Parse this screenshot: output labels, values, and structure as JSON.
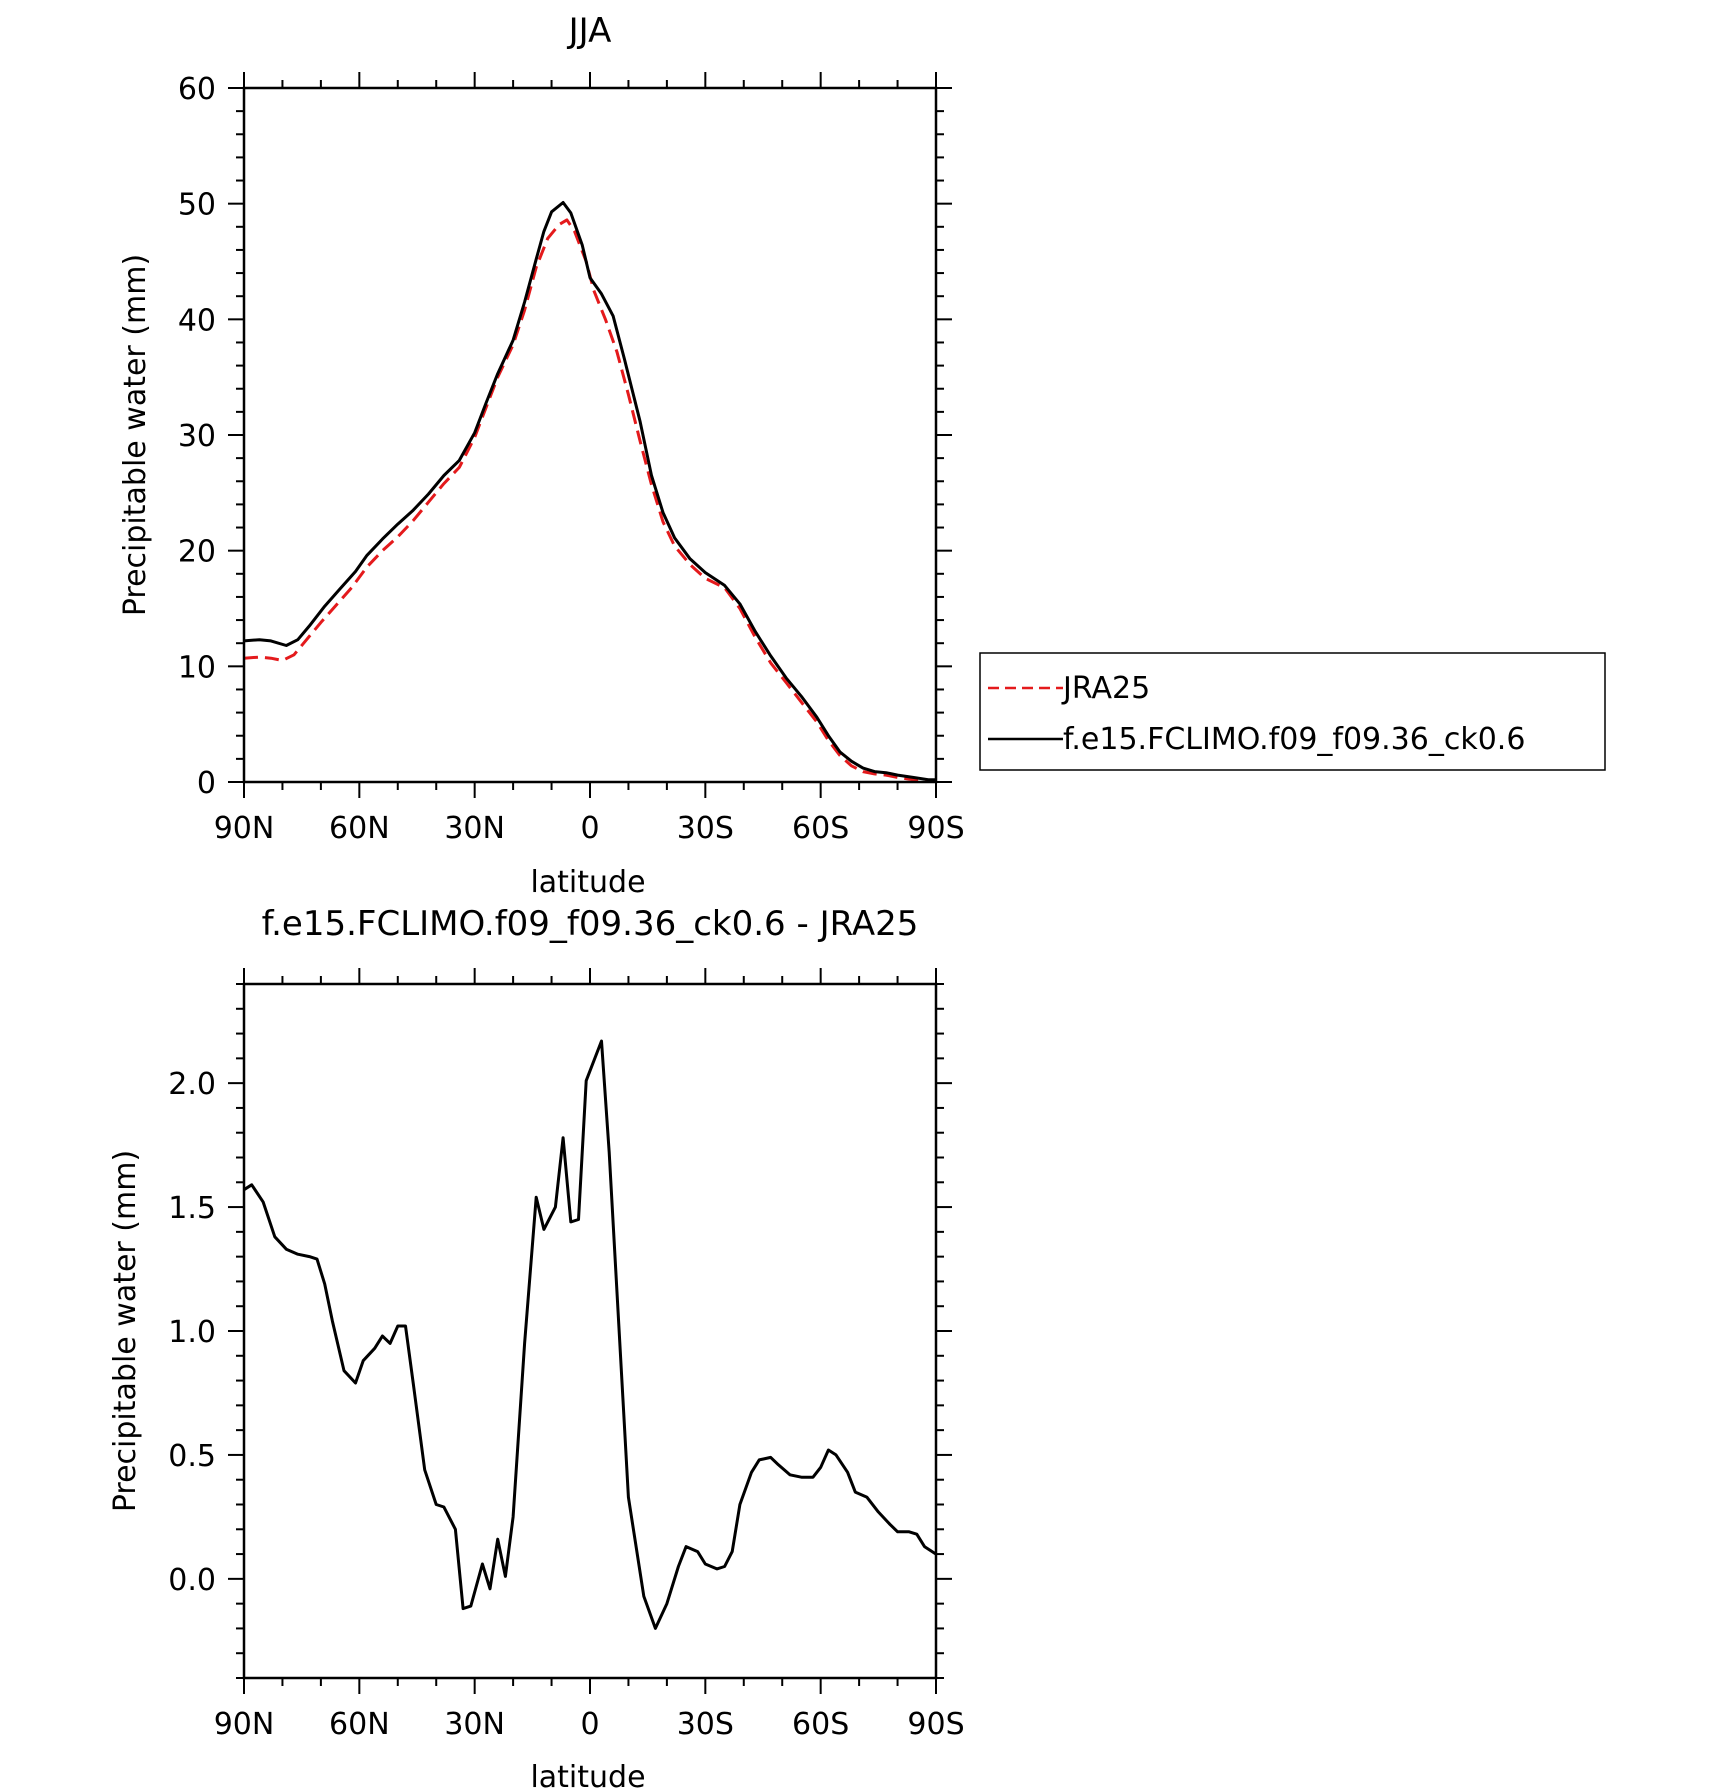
{
  "chart_data": [
    {
      "type": "line",
      "title": "JJA",
      "xlabel": "latitude",
      "ylabel": "Precipitable water (mm)",
      "xlim": [
        90,
        -90
      ],
      "ylim": [
        0,
        60
      ],
      "xticks": [
        {
          "value": 90,
          "label": "90N"
        },
        {
          "value": 60,
          "label": "60N"
        },
        {
          "value": 30,
          "label": "30N"
        },
        {
          "value": 0,
          "label": "0"
        },
        {
          "value": -30,
          "label": "30S"
        },
        {
          "value": -60,
          "label": "60S"
        },
        {
          "value": -90,
          "label": "90S"
        }
      ],
      "yticks": [
        {
          "value": 0,
          "label": "0"
        },
        {
          "value": 10,
          "label": "10"
        },
        {
          "value": 20,
          "label": "20"
        },
        {
          "value": 30,
          "label": "30"
        },
        {
          "value": 40,
          "label": "40"
        },
        {
          "value": 50,
          "label": "50"
        },
        {
          "value": 60,
          "label": "60"
        }
      ],
      "legend_position": "right",
      "series": [
        {
          "name": "JRA25",
          "color": "#e41a1c",
          "dash": "dashed",
          "points": [
            [
              90,
              10.7
            ],
            [
              86,
              10.8
            ],
            [
              83,
              10.7
            ],
            [
              80,
              10.5
            ],
            [
              77,
              11.0
            ],
            [
              74,
              12.2
            ],
            [
              70,
              13.8
            ],
            [
              66,
              15.3
            ],
            [
              62,
              16.8
            ],
            [
              58,
              18.6
            ],
            [
              54,
              20.0
            ],
            [
              50,
              21.2
            ],
            [
              46,
              22.6
            ],
            [
              42,
              24.2
            ],
            [
              38,
              25.8
            ],
            [
              34,
              27.2
            ],
            [
              30,
              29.8
            ],
            [
              27,
              32.4
            ],
            [
              24,
              35.0
            ],
            [
              20,
              37.8
            ],
            [
              17,
              40.8
            ],
            [
              14,
              44.5
            ],
            [
              11,
              47.0
            ],
            [
              8,
              48.2
            ],
            [
              6,
              48.6
            ],
            [
              4,
              47.6
            ],
            [
              1,
              45.0
            ],
            [
              -1,
              42.5
            ],
            [
              -4,
              40.0
            ],
            [
              -7,
              37.2
            ],
            [
              -10,
              33.5
            ],
            [
              -13,
              29.5
            ],
            [
              -16,
              25.7
            ],
            [
              -19,
              22.5
            ],
            [
              -22,
              20.4
            ],
            [
              -26,
              18.8
            ],
            [
              -30,
              17.6
            ],
            [
              -35,
              16.8
            ],
            [
              -39,
              15.0
            ],
            [
              -43,
              12.5
            ],
            [
              -47,
              10.3
            ],
            [
              -51,
              8.6
            ],
            [
              -55,
              6.9
            ],
            [
              -59,
              5.2
            ],
            [
              -62,
              3.6
            ],
            [
              -65,
              2.3
            ],
            [
              -68,
              1.4
            ],
            [
              -71,
              0.9
            ],
            [
              -74,
              0.7
            ],
            [
              -77,
              0.6
            ],
            [
              -80,
              0.4
            ],
            [
              -84,
              0.2
            ],
            [
              -88,
              0.1
            ],
            [
              -90,
              0.1
            ]
          ]
        },
        {
          "name": "f.e15.FCLIMO.f09_f09.36_ck0.6",
          "color": "#000000",
          "dash": "solid",
          "points": [
            [
              90,
              12.2
            ],
            [
              86,
              12.3
            ],
            [
              83,
              12.2
            ],
            [
              79,
              11.8
            ],
            [
              76,
              12.3
            ],
            [
              73,
              13.5
            ],
            [
              69,
              15.2
            ],
            [
              65,
              16.7
            ],
            [
              61,
              18.2
            ],
            [
              58,
              19.6
            ],
            [
              54,
              21.0
            ],
            [
              50,
              22.3
            ],
            [
              46,
              23.5
            ],
            [
              42,
              24.9
            ],
            [
              38,
              26.5
            ],
            [
              34,
              27.8
            ],
            [
              30,
              30.2
            ],
            [
              27,
              32.8
            ],
            [
              24,
              35.3
            ],
            [
              20,
              38.2
            ],
            [
              17,
              41.5
            ],
            [
              14,
              45.2
            ],
            [
              12,
              47.6
            ],
            [
              10,
              49.3
            ],
            [
              7,
              50.1
            ],
            [
              5,
              49.2
            ],
            [
              2,
              46.4
            ],
            [
              0,
              43.6
            ],
            [
              -3,
              42.2
            ],
            [
              -6,
              40.3
            ],
            [
              -9,
              36.5
            ],
            [
              -13,
              31.2
            ],
            [
              -16,
              26.5
            ],
            [
              -19,
              23.3
            ],
            [
              -22,
              21.1
            ],
            [
              -26,
              19.3
            ],
            [
              -30,
              18.1
            ],
            [
              -35,
              17.0
            ],
            [
              -39,
              15.4
            ],
            [
              -43,
              13.0
            ],
            [
              -47,
              10.9
            ],
            [
              -51,
              9.0
            ],
            [
              -55,
              7.4
            ],
            [
              -59,
              5.6
            ],
            [
              -62,
              4.0
            ],
            [
              -65,
              2.6
            ],
            [
              -68,
              1.8
            ],
            [
              -71,
              1.2
            ],
            [
              -74,
              0.9
            ],
            [
              -77,
              0.8
            ],
            [
              -80,
              0.6
            ],
            [
              -84,
              0.4
            ],
            [
              -88,
              0.2
            ],
            [
              -90,
              0.2
            ]
          ]
        }
      ]
    },
    {
      "type": "line",
      "title": "f.e15.FCLIMO.f09_f09.36_ck0.6 - JRA25",
      "xlabel": "latitude",
      "ylabel": "Precipitable water (mm)",
      "xlim": [
        90,
        -90
      ],
      "ylim": [
        -0.4,
        2.4
      ],
      "xticks": [
        {
          "value": 90,
          "label": "90N"
        },
        {
          "value": 60,
          "label": "60N"
        },
        {
          "value": 30,
          "label": "30N"
        },
        {
          "value": 0,
          "label": "0"
        },
        {
          "value": -30,
          "label": "30S"
        },
        {
          "value": -60,
          "label": "60S"
        },
        {
          "value": -90,
          "label": "90S"
        }
      ],
      "yticks": [
        {
          "value": 0.0,
          "label": "0.0"
        },
        {
          "value": 0.5,
          "label": "0.5"
        },
        {
          "value": 1.0,
          "label": "1.0"
        },
        {
          "value": 1.5,
          "label": "1.5"
        },
        {
          "value": 2.0,
          "label": "2.0"
        }
      ],
      "series": [
        {
          "name": "",
          "color": "#000000",
          "dash": "solid",
          "points": [
            [
              90,
              1.57
            ],
            [
              88,
              1.59
            ],
            [
              85,
              1.52
            ],
            [
              82,
              1.38
            ],
            [
              79,
              1.33
            ],
            [
              76,
              1.31
            ],
            [
              73,
              1.3
            ],
            [
              71,
              1.29
            ],
            [
              69,
              1.19
            ],
            [
              67,
              1.04
            ],
            [
              64,
              0.84
            ],
            [
              61,
              0.79
            ],
            [
              59,
              0.88
            ],
            [
              56,
              0.93
            ],
            [
              54,
              0.98
            ],
            [
              52,
              0.95
            ],
            [
              50,
              1.02
            ],
            [
              48,
              1.02
            ],
            [
              46,
              0.79
            ],
            [
              43,
              0.44
            ],
            [
              40,
              0.3
            ],
            [
              38,
              0.29
            ],
            [
              35,
              0.2
            ],
            [
              33,
              -0.12
            ],
            [
              31,
              -0.11
            ],
            [
              28,
              0.06
            ],
            [
              26,
              -0.04
            ],
            [
              24,
              0.16
            ],
            [
              22,
              0.01
            ],
            [
              20,
              0.25
            ],
            [
              17,
              0.95
            ],
            [
              14,
              1.54
            ],
            [
              12,
              1.41
            ],
            [
              9,
              1.5
            ],
            [
              7,
              1.78
            ],
            [
              5,
              1.44
            ],
            [
              3,
              1.45
            ],
            [
              1,
              2.01
            ],
            [
              -3,
              2.17
            ],
            [
              -5,
              1.72
            ],
            [
              -10,
              0.33
            ],
            [
              -14,
              -0.07
            ],
            [
              -17,
              -0.2
            ],
            [
              -20,
              -0.1
            ],
            [
              -23,
              0.05
            ],
            [
              -25,
              0.13
            ],
            [
              -28,
              0.11
            ],
            [
              -30,
              0.06
            ],
            [
              -33,
              0.04
            ],
            [
              -35,
              0.05
            ],
            [
              -37,
              0.11
            ],
            [
              -39,
              0.3
            ],
            [
              -42,
              0.43
            ],
            [
              -44,
              0.48
            ],
            [
              -47,
              0.49
            ],
            [
              -49,
              0.46
            ],
            [
              -52,
              0.42
            ],
            [
              -55,
              0.41
            ],
            [
              -58,
              0.41
            ],
            [
              -60,
              0.45
            ],
            [
              -62,
              0.52
            ],
            [
              -64,
              0.5
            ],
            [
              -67,
              0.43
            ],
            [
              -69,
              0.35
            ],
            [
              -72,
              0.33
            ],
            [
              -75,
              0.27
            ],
            [
              -78,
              0.22
            ],
            [
              -80,
              0.19
            ],
            [
              -83,
              0.19
            ],
            [
              -85,
              0.18
            ],
            [
              -87,
              0.13
            ],
            [
              -90,
              0.1
            ]
          ]
        }
      ]
    }
  ]
}
